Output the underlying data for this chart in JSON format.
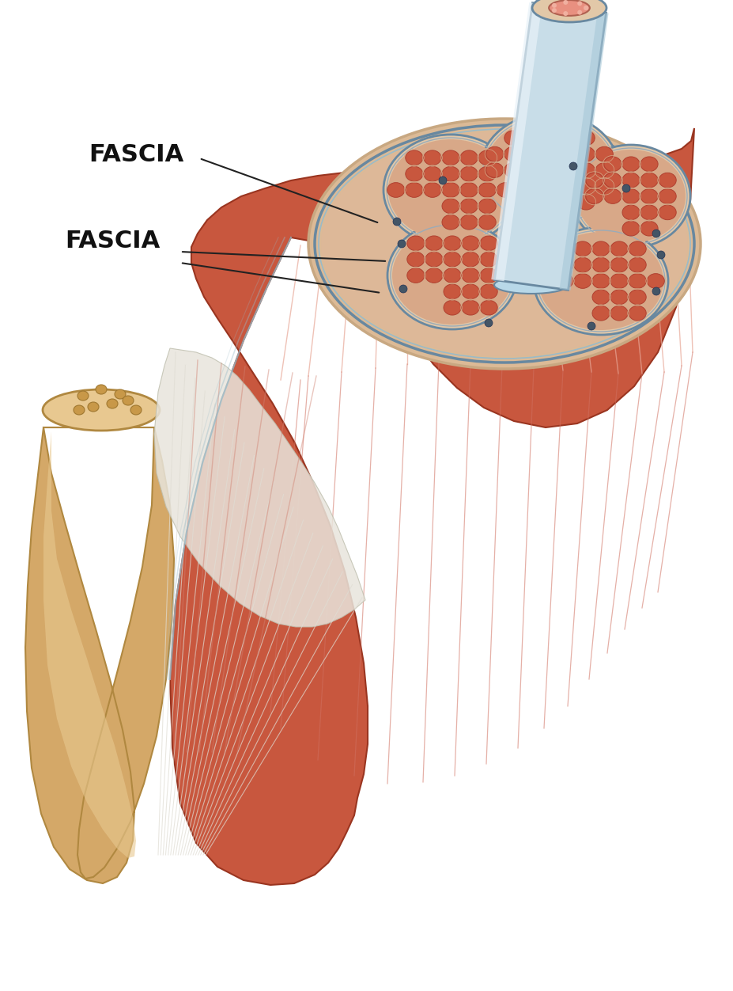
{
  "bg_color": "#ffffff",
  "label1": "FASCIA",
  "label2": "FASCIA",
  "muscle_red": "#C8573E",
  "muscle_mid": "#D4705A",
  "muscle_light": "#E8A898",
  "muscle_dark": "#9A3520",
  "fascia_tan": "#E2C8A8",
  "fascia_peach": "#DCBA96",
  "fascia_edge": "#C8A882",
  "sheath_blue_light": "#C8DDE8",
  "sheath_blue_mid": "#9ABBC8",
  "sheath_blue_dark": "#6888A0",
  "bone_tan": "#D4A868",
  "bone_light": "#E8C890",
  "bone_dark": "#B08840",
  "vessel_pink": "#E89080",
  "vessel_pink_light": "#F0B0A0",
  "connective_dark": "#445566",
  "tendon_white": "#E8E5DC",
  "tendon_light": "#F2F0E8",
  "font_size": 22,
  "font_weight": "bold"
}
